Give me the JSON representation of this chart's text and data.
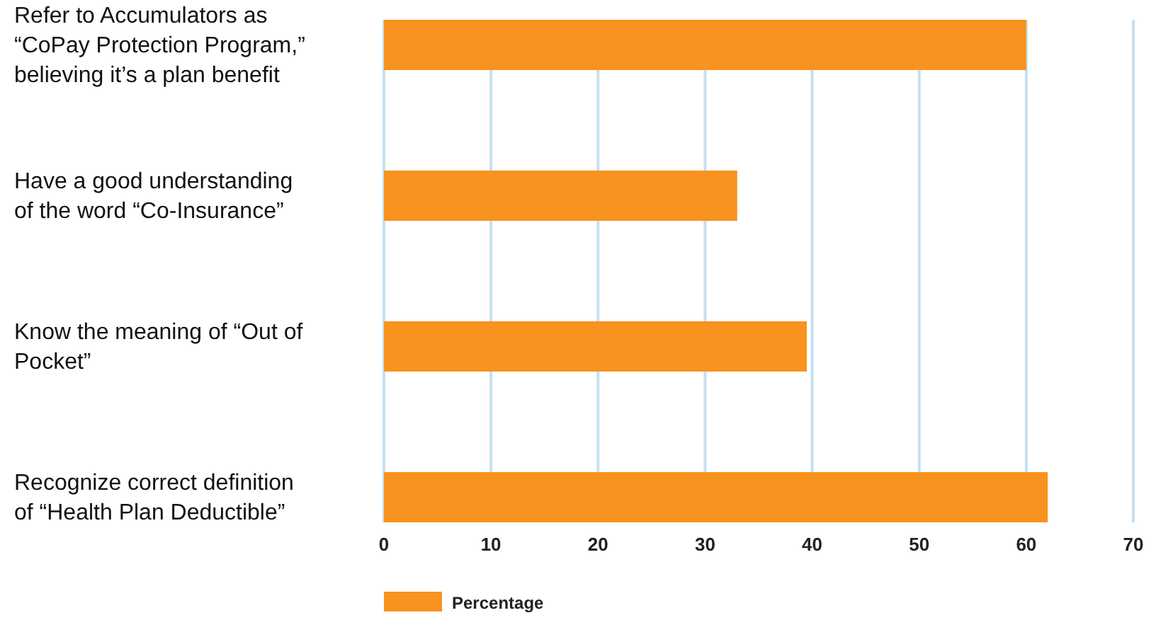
{
  "chart_data": {
    "type": "bar",
    "orientation": "horizontal",
    "categories": [
      "Refer to Accumulators as “CoPay Protection Program,” believing it’s a plan benefit",
      "Have a good understanding of the word “Co-Insurance”",
      "Know the meaning of “Out of Pocket”",
      "Recognize correct definition of “Health Plan Deductible”"
    ],
    "series": [
      {
        "name": "Percentage",
        "color": "#f7931e",
        "values": [
          60,
          33,
          39.5,
          62
        ]
      }
    ],
    "xlim": [
      0,
      70
    ],
    "xticks": [
      0,
      10,
      20,
      30,
      40,
      50,
      60,
      70
    ],
    "grid": "x",
    "legend": "bottom left"
  }
}
